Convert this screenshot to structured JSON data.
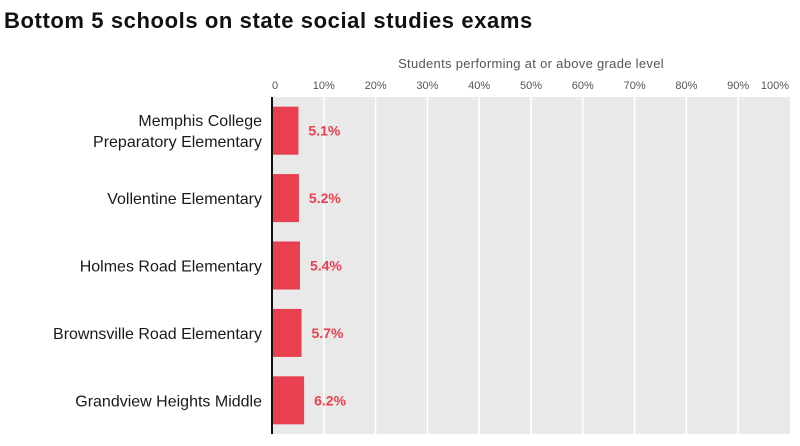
{
  "title": "Bottom 5 schools on state social studies exams",
  "chart_data": {
    "type": "bar",
    "orientation": "horizontal",
    "title": "Bottom 5 schools on state social studies exams",
    "xlabel": "Students performing at or above grade level",
    "ylabel": "",
    "xlim": [
      0,
      100
    ],
    "grid": true,
    "ticks": [
      0,
      10,
      20,
      30,
      40,
      50,
      60,
      70,
      80,
      90,
      100
    ],
    "tick_labels": [
      "0",
      "10%",
      "20%",
      "30%",
      "40%",
      "50%",
      "60%",
      "70%",
      "80%",
      "90%",
      "100%"
    ],
    "categories": [
      [
        "Memphis College",
        "Preparatory Elementary"
      ],
      [
        "Vollentine Elementary"
      ],
      [
        "Holmes Road Elementary"
      ],
      [
        "Brownsville Road Elementary"
      ],
      [
        "Grandview Heights Middle"
      ]
    ],
    "values": [
      5.1,
      5.2,
      5.4,
      5.7,
      6.2
    ],
    "value_labels": [
      "5.1%",
      "5.2%",
      "5.4%",
      "5.7%",
      "6.2%"
    ],
    "colors": {
      "bar": "#e8404f",
      "label": "#e8404f",
      "plot_bg": "#e9e9e9",
      "grid": "#ffffff",
      "axis": "#111111"
    }
  }
}
